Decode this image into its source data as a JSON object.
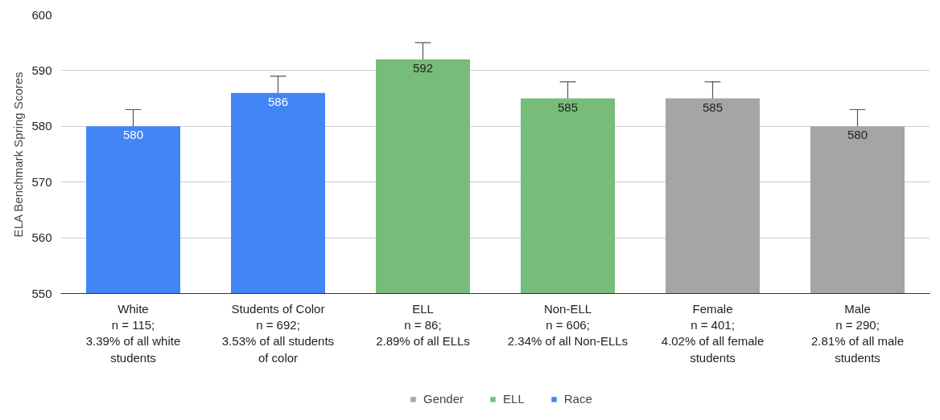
{
  "chart_data": {
    "type": "bar",
    "ylabel": "ELA Benchmark Spring Scores",
    "categories": [
      "White\nn = 115;\n3.39% of all white\nstudents",
      "Students of Color\nn = 692;\n3.53% of all students\nof color",
      "ELL\nn = 86;\n2.89% of all ELLs",
      "Non-ELL\nn = 606;\n2.34% of all Non-ELLs",
      "Female\nn = 401;\n4.02% of all female\nstudents",
      "Male\nn = 290;\n2.81% of all male\nstudents"
    ],
    "series": [
      {
        "name": "Gender",
        "color": "#a5a5a5",
        "values": [
          null,
          null,
          null,
          null,
          585,
          580
        ],
        "errors": [
          null,
          null,
          null,
          null,
          [
            585,
            588
          ],
          [
            580,
            583
          ]
        ]
      },
      {
        "name": "ELL",
        "color": "#77bc79",
        "values": [
          null,
          null,
          592,
          585,
          null,
          null
        ],
        "errors": [
          null,
          null,
          [
            592,
            595
          ],
          [
            585,
            588
          ],
          null,
          null
        ]
      },
      {
        "name": "Race",
        "color": "#4285f4",
        "values": [
          580,
          586,
          null,
          null,
          null,
          null
        ],
        "errors": [
          [
            580,
            583
          ],
          [
            586,
            589
          ],
          null,
          null,
          null,
          null
        ]
      }
    ],
    "ylim": [
      550,
      600
    ],
    "yticks": [
      550,
      560,
      570,
      580,
      590,
      600
    ],
    "grid": "y",
    "legend": "bottom",
    "data_labels": true
  }
}
